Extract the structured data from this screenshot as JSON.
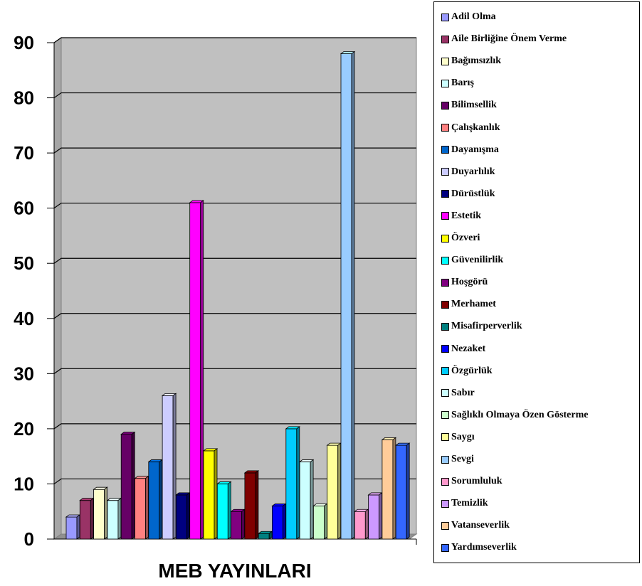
{
  "chart_data": {
    "type": "bar",
    "xlabel": "MEB YAYINLARI",
    "ylabel": "",
    "ylim": [
      0,
      90
    ],
    "yticks": [
      "0",
      "10",
      "20",
      "30",
      "40",
      "50",
      "60",
      "70",
      "80",
      "90"
    ],
    "grid": true,
    "legend_position": "right",
    "series": [
      {
        "name": "Adil Olma",
        "value": 4,
        "color": "#9999ff"
      },
      {
        "name": "Aile Birliğine Önem Verme",
        "value": 7,
        "color": "#993366"
      },
      {
        "name": "Bağımsızlık",
        "value": 9,
        "color": "#ffffcc"
      },
      {
        "name": "Barış",
        "value": 7,
        "color": "#ccffff"
      },
      {
        "name": "Bilimsellik",
        "value": 19,
        "color": "#660066"
      },
      {
        "name": "Çalışkanlık",
        "value": 11,
        "color": "#ff8080"
      },
      {
        "name": "Dayanışma",
        "value": 14,
        "color": "#0066cc"
      },
      {
        "name": "Duyarlılık",
        "value": 26,
        "color": "#ccccff"
      },
      {
        "name": "Dürüstlük",
        "value": 8,
        "color": "#000080"
      },
      {
        "name": "Estetik",
        "value": 61,
        "color": "#ff00ff"
      },
      {
        "name": "Özveri",
        "value": 16,
        "color": "#ffff00"
      },
      {
        "name": "Güvenilirlik",
        "value": 10,
        "color": "#00ffff"
      },
      {
        "name": "Hoşgörü",
        "value": 5,
        "color": "#800080"
      },
      {
        "name": "Merhamet",
        "value": 12,
        "color": "#800000"
      },
      {
        "name": "Misafirperverlik",
        "value": 1,
        "color": "#008080"
      },
      {
        "name": "Nezaket",
        "value": 6,
        "color": "#0000ff"
      },
      {
        "name": "Özgürlük",
        "value": 20,
        "color": "#00ccff"
      },
      {
        "name": "Sabır",
        "value": 14,
        "color": "#ccffff"
      },
      {
        "name": "Sağlıklı Olmaya Özen Gösterme",
        "value": 6,
        "color": "#ccffcc"
      },
      {
        "name": "Saygı",
        "value": 17,
        "color": "#ffff99"
      },
      {
        "name": "Sevgi",
        "value": 88,
        "color": "#99ccff"
      },
      {
        "name": "Sorumluluk",
        "value": 5,
        "color": "#ff99cc"
      },
      {
        "name": "Temizlik",
        "value": 8,
        "color": "#cc99ff"
      },
      {
        "name": "Vatanseverlik",
        "value": 18,
        "color": "#ffcc99"
      },
      {
        "name": "Yardımseverlik",
        "value": 17,
        "color": "#3366ff"
      }
    ]
  }
}
